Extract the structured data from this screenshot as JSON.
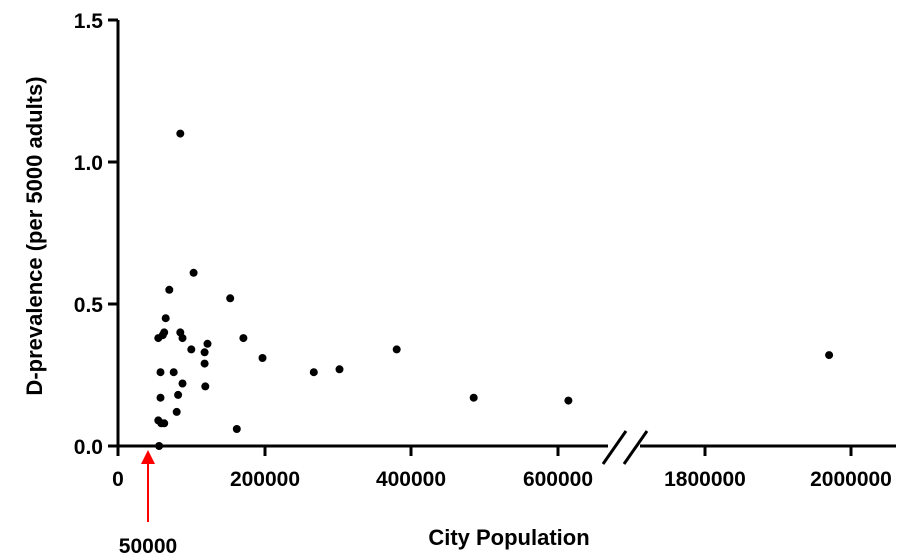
{
  "chart_data": {
    "type": "scatter",
    "xlabel": "City Population",
    "ylabel": "D-prevalence (per 5000 adults)",
    "ylim": [
      0,
      1.5
    ],
    "yticks": [
      "0.0",
      "0.5",
      "1.0",
      "1.5"
    ],
    "xticks_left": [
      "0",
      "200000",
      "400000",
      "600000"
    ],
    "xticks_right": [
      "1800000",
      "2000000"
    ],
    "x_axis_break": true,
    "grid": false,
    "annotation": {
      "label": "50000",
      "x": 50000,
      "color": "#ff0000"
    },
    "points": [
      {
        "x": 55000,
        "y": 0.38
      },
      {
        "x": 55000,
        "y": 0.09
      },
      {
        "x": 56000,
        "y": 0.0
      },
      {
        "x": 58000,
        "y": 0.26
      },
      {
        "x": 58000,
        "y": 0.17
      },
      {
        "x": 59000,
        "y": 0.08
      },
      {
        "x": 61000,
        "y": 0.39
      },
      {
        "x": 63000,
        "y": 0.4
      },
      {
        "x": 63000,
        "y": 0.08
      },
      {
        "x": 65000,
        "y": 0.45
      },
      {
        "x": 70000,
        "y": 0.55
      },
      {
        "x": 76000,
        "y": 0.26
      },
      {
        "x": 80000,
        "y": 0.12
      },
      {
        "x": 82000,
        "y": 0.18
      },
      {
        "x": 85000,
        "y": 0.4
      },
      {
        "x": 85000,
        "y": 1.1
      },
      {
        "x": 88000,
        "y": 0.38
      },
      {
        "x": 88000,
        "y": 0.22
      },
      {
        "x": 100000,
        "y": 0.34
      },
      {
        "x": 103000,
        "y": 0.61
      },
      {
        "x": 118000,
        "y": 0.33
      },
      {
        "x": 118000,
        "y": 0.29
      },
      {
        "x": 119000,
        "y": 0.21
      },
      {
        "x": 122000,
        "y": 0.36
      },
      {
        "x": 153000,
        "y": 0.52
      },
      {
        "x": 162000,
        "y": 0.06
      },
      {
        "x": 171000,
        "y": 0.38
      },
      {
        "x": 197000,
        "y": 0.31
      },
      {
        "x": 267000,
        "y": 0.26
      },
      {
        "x": 302000,
        "y": 0.27
      },
      {
        "x": 380000,
        "y": 0.34
      },
      {
        "x": 485000,
        "y": 0.17
      },
      {
        "x": 614000,
        "y": 0.16
      },
      {
        "x": 1970000,
        "y": 0.32
      }
    ]
  }
}
